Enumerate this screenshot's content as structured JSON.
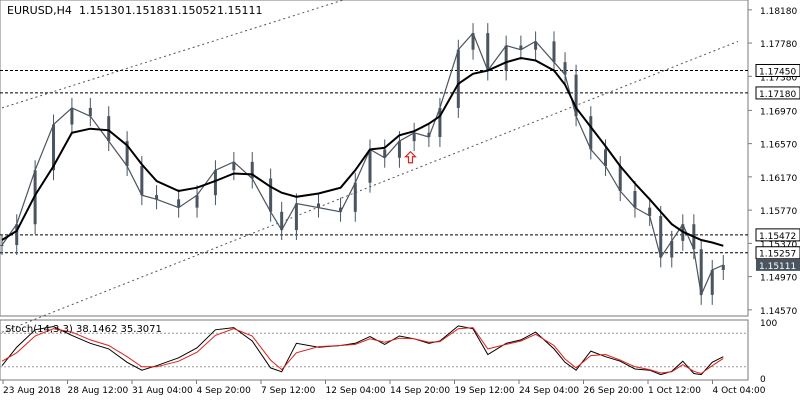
{
  "header": {
    "symbol": "EURUSD,H4",
    "open": "1.15130",
    "high": "1.15183",
    "low": "1.15052",
    "close": "1.15111"
  },
  "chart_data": [
    {
      "type": "candlestick",
      "title": "EURUSD,H4 1.15130 1.15183 1.15052 1.15111",
      "ylim": [
        1.1452,
        1.1825
      ],
      "y_ticks": [
        "1.18180",
        "1.17780",
        "1.17380",
        "1.16970",
        "1.16570",
        "1.16170",
        "1.15770",
        "1.15370",
        "1.14970",
        "1.14570"
      ],
      "x_ticks": [
        "23 Aug 2018",
        "28 Aug 12:00",
        "31 Aug 04:00",
        "4 Sep 20:00",
        "7 Sep 12:00",
        "12 Sep 04:00",
        "14 Sep 20:00",
        "19 Sep 12:00",
        "24 Sep 04:00",
        "26 Sep 20:00",
        "1 Oct 12:00",
        "4 Oct 04:00"
      ],
      "price_lines": [
        {
          "value": 1.1745,
          "label": "1.17450"
        },
        {
          "value": 1.1718,
          "label": "1.17180"
        },
        {
          "value": 1.15472,
          "label": "1.15472"
        },
        {
          "value": 1.15257,
          "label": "1.15257"
        }
      ],
      "current_price": {
        "value": 1.15111,
        "label": "1.15111"
      },
      "close_series_color": "#4a5560",
      "ma_color": "#000000",
      "channel_color": "#555555",
      "signal_arrow_color": "#e0201a",
      "close_path": [
        [
          0,
          1.1535
        ],
        [
          4,
          1.156
        ],
        [
          9,
          1.1625
        ],
        [
          14,
          1.168
        ],
        [
          19,
          1.17
        ],
        [
          24,
          1.169
        ],
        [
          29,
          1.166
        ],
        [
          34,
          1.163
        ],
        [
          38,
          1.1595
        ],
        [
          42,
          1.159
        ],
        [
          48,
          1.158
        ],
        [
          53,
          1.1595
        ],
        [
          58,
          1.1625
        ],
        [
          63,
          1.1635
        ],
        [
          68,
          1.1615
        ],
        [
          73,
          1.1575
        ],
        [
          76,
          1.1553
        ],
        [
          80,
          1.1585
        ],
        [
          86,
          1.158
        ],
        [
          92,
          1.1575
        ],
        [
          96,
          1.161
        ],
        [
          100,
          1.165
        ],
        [
          104,
          1.164
        ],
        [
          108,
          1.166
        ],
        [
          112,
          1.167
        ],
        [
          116,
          1.1665
        ],
        [
          119,
          1.17
        ],
        [
          124,
          1.177
        ],
        [
          128,
          1.179
        ],
        [
          132,
          1.1745
        ],
        [
          137,
          1.1775
        ],
        [
          141,
          1.177
        ],
        [
          145,
          1.178
        ],
        [
          150,
          1.1755
        ],
        [
          153,
          1.174
        ],
        [
          156,
          1.169
        ],
        [
          160,
          1.165
        ],
        [
          164,
          1.163
        ],
        [
          168,
          1.16
        ],
        [
          172,
          1.158
        ],
        [
          176,
          1.157
        ],
        [
          179,
          1.152
        ],
        [
          182,
          1.154
        ],
        [
          185,
          1.156
        ],
        [
          188,
          1.153
        ],
        [
          190,
          1.1475
        ],
        [
          193,
          1.1505
        ],
        [
          196,
          1.1511
        ]
      ],
      "ma_path": [
        [
          0,
          1.1541
        ],
        [
          4,
          1.1552
        ],
        [
          9,
          1.1595
        ],
        [
          14,
          1.163
        ],
        [
          19,
          1.167
        ],
        [
          24,
          1.1675
        ],
        [
          29,
          1.1673
        ],
        [
          34,
          1.1655
        ],
        [
          38,
          1.1632
        ],
        [
          42,
          1.1612
        ],
        [
          48,
          1.16
        ],
        [
          53,
          1.1604
        ],
        [
          58,
          1.1612
        ],
        [
          63,
          1.1621
        ],
        [
          68,
          1.162
        ],
        [
          73,
          1.1605
        ],
        [
          76,
          1.1598
        ],
        [
          80,
          1.1593
        ],
        [
          86,
          1.1597
        ],
        [
          92,
          1.1604
        ],
        [
          96,
          1.1625
        ],
        [
          100,
          1.165
        ],
        [
          104,
          1.1652
        ],
        [
          108,
          1.1667
        ],
        [
          112,
          1.1672
        ],
        [
          116,
          1.1681
        ],
        [
          119,
          1.169
        ],
        [
          124,
          1.1729
        ],
        [
          128,
          1.1741
        ],
        [
          132,
          1.1745
        ],
        [
          137,
          1.1755
        ],
        [
          141,
          1.176
        ],
        [
          145,
          1.1757
        ],
        [
          150,
          1.1745
        ],
        [
          153,
          1.1728
        ],
        [
          156,
          1.17
        ],
        [
          160,
          1.1677
        ],
        [
          164,
          1.1654
        ],
        [
          168,
          1.163
        ],
        [
          172,
          1.1609
        ],
        [
          176,
          1.159
        ],
        [
          179,
          1.1575
        ],
        [
          182,
          1.156
        ],
        [
          185,
          1.1551
        ],
        [
          188,
          1.1545
        ],
        [
          190,
          1.1541
        ],
        [
          193,
          1.1538
        ],
        [
          196,
          1.1534
        ]
      ],
      "channel_lines": [
        {
          "from": [
            0,
            1.17
          ],
          "to": [
            200,
            1.198
          ]
        },
        {
          "from": [
            0,
            1.143
          ],
          "to": [
            200,
            1.178
          ]
        }
      ],
      "signal_arrow": {
        "x": 111,
        "y": 1.164,
        "direction": "up"
      }
    },
    {
      "type": "line",
      "title": "Stoch(14,3,3) 38.1462 35.3071",
      "ylim": [
        0,
        100
      ],
      "y_ticks": [
        "100",
        "0"
      ],
      "levels": [
        80,
        20
      ],
      "series": [
        {
          "name": "%K",
          "color": "#000000",
          "x": [
            0,
            4,
            9,
            14,
            19,
            24,
            29,
            34,
            38,
            42,
            48,
            53,
            58,
            63,
            68,
            73,
            76,
            80,
            86,
            92,
            96,
            100,
            104,
            108,
            112,
            116,
            119,
            124,
            128,
            132,
            137,
            141,
            145,
            150,
            153,
            156,
            160,
            164,
            168,
            172,
            176,
            179,
            182,
            185,
            188,
            190,
            193,
            196
          ],
          "values": [
            22,
            55,
            86,
            92,
            76,
            62,
            52,
            28,
            14,
            22,
            36,
            54,
            86,
            90,
            66,
            18,
            11,
            62,
            55,
            58,
            62,
            74,
            60,
            75,
            70,
            62,
            66,
            93,
            88,
            42,
            62,
            68,
            82,
            52,
            28,
            14,
            48,
            38,
            30,
            16,
            14,
            6,
            12,
            30,
            8,
            6,
            28,
            38
          ]
        },
        {
          "name": "%D",
          "color": "#e0201a",
          "x": [
            0,
            4,
            9,
            14,
            19,
            24,
            29,
            34,
            38,
            42,
            48,
            53,
            58,
            63,
            68,
            73,
            76,
            80,
            86,
            92,
            96,
            100,
            104,
            108,
            112,
            116,
            119,
            124,
            128,
            132,
            137,
            141,
            145,
            150,
            153,
            156,
            160,
            164,
            168,
            172,
            176,
            179,
            182,
            185,
            188,
            190,
            193,
            196
          ],
          "values": [
            30,
            45,
            75,
            88,
            82,
            68,
            58,
            38,
            20,
            20,
            30,
            46,
            76,
            88,
            75,
            32,
            15,
            45,
            56,
            58,
            60,
            70,
            64,
            71,
            70,
            64,
            65,
            88,
            90,
            52,
            60,
            66,
            78,
            58,
            34,
            18,
            40,
            42,
            32,
            20,
            15,
            9,
            11,
            24,
            12,
            8,
            22,
            35
          ]
        }
      ]
    }
  ]
}
